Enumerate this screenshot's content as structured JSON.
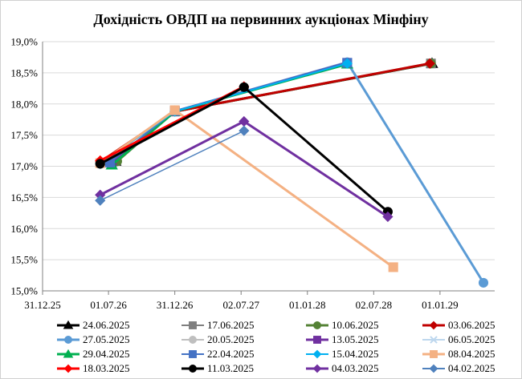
{
  "chart_data": {
    "type": "line",
    "title": "Дохідність ОВДП на первинних аукціонах Мінфіну",
    "xlabel": "",
    "ylabel": "",
    "x_ticks": [
      "31.12.25",
      "01.07.26",
      "31.12.26",
      "02.07.27",
      "01.01.28",
      "02.07.28",
      "01.01.29"
    ],
    "x_tick_dates": [
      "2025-12-31",
      "2026-07-01",
      "2026-12-31",
      "2027-07-02",
      "2028-01-01",
      "2028-07-02",
      "2029-01-01"
    ],
    "xlim": [
      "2025-12-31",
      "2029-06-01"
    ],
    "y_ticks": [
      "15,0%",
      "15,5%",
      "16,0%",
      "16,5%",
      "17,0%",
      "17,5%",
      "18,0%",
      "18,5%",
      "19,0%"
    ],
    "ylim": [
      15.0,
      19.0
    ],
    "grid": "horizontal",
    "legend_position": "bottom",
    "series": [
      {
        "name": "24.06.2025",
        "color": "#000000",
        "marker": "triangle",
        "width": 3,
        "points": [
          [
            "2026-07-20",
            17.08
          ],
          [
            "2026-12-31",
            17.88
          ],
          [
            "2028-12-10",
            18.65
          ]
        ]
      },
      {
        "name": "17.06.2025",
        "color": "#7f7f7f",
        "marker": "square",
        "width": 2,
        "points": [
          [
            "2026-07-05",
            17.07
          ],
          [
            "2026-12-31",
            17.88
          ],
          [
            "2028-12-07",
            18.65
          ]
        ]
      },
      {
        "name": "10.06.2025",
        "color": "#548235",
        "marker": "circle",
        "width": 3,
        "points": [
          [
            "2026-07-25",
            17.08
          ],
          [
            "2026-12-31",
            17.88
          ],
          [
            "2028-12-07",
            18.65
          ]
        ]
      },
      {
        "name": "03.06.2025",
        "color": "#c00000",
        "marker": "diamond",
        "width": 3,
        "points": [
          [
            "2026-06-08",
            17.07
          ],
          [
            "2026-12-31",
            17.88
          ],
          [
            "2028-12-04",
            18.65
          ]
        ]
      },
      {
        "name": "27.05.2025",
        "color": "#5b9bd5",
        "marker": "circle",
        "width": 3,
        "points": [
          [
            "2026-06-08",
            17.05
          ],
          [
            "2026-12-31",
            17.88
          ],
          [
            "2028-04-20",
            18.67
          ],
          [
            "2029-05-01",
            15.13
          ]
        ]
      },
      {
        "name": "20.05.2025",
        "color": "#bfbfbf",
        "marker": "circle",
        "width": 2,
        "points": [
          [
            "2026-06-08",
            17.05
          ],
          [
            "2026-12-31",
            17.88
          ],
          [
            "2028-04-20",
            18.66
          ]
        ]
      },
      {
        "name": "13.05.2025",
        "color": "#7030a0",
        "marker": "square",
        "width": 3,
        "points": [
          [
            "2026-07-10",
            17.05
          ],
          [
            "2026-12-31",
            17.88
          ],
          [
            "2028-04-20",
            18.66
          ]
        ]
      },
      {
        "name": "06.05.2025",
        "color": "#bdd7ee",
        "marker": "x",
        "width": 2,
        "points": [
          [
            "2026-06-10",
            17.05
          ],
          [
            "2026-12-31",
            17.88
          ],
          [
            "2028-04-20",
            18.65
          ]
        ]
      },
      {
        "name": "29.04.2025",
        "color": "#00b050",
        "marker": "triangle",
        "width": 3,
        "points": [
          [
            "2026-07-10",
            17.02
          ],
          [
            "2026-12-31",
            17.88
          ],
          [
            "2028-04-20",
            18.64
          ]
        ]
      },
      {
        "name": "22.04.2025",
        "color": "#4472c4",
        "marker": "square",
        "width": 2,
        "points": [
          [
            "2026-07-05",
            17.06
          ],
          [
            "2026-12-31",
            17.89
          ],
          [
            "2028-04-20",
            18.66
          ]
        ]
      },
      {
        "name": "15.04.2025",
        "color": "#00b0f0",
        "marker": "diamond",
        "width": 2,
        "points": [
          [
            "2026-06-08",
            17.04
          ],
          [
            "2026-12-31",
            17.88
          ],
          [
            "2028-04-20",
            18.65
          ]
        ]
      },
      {
        "name": "08.04.2025",
        "color": "#f4b183",
        "marker": "square",
        "width": 3,
        "points": [
          [
            "2026-06-08",
            17.05
          ],
          [
            "2026-12-31",
            17.9
          ],
          [
            "2028-08-25",
            15.38
          ]
        ]
      },
      {
        "name": "18.03.2025",
        "color": "#ff0000",
        "marker": "diamond",
        "width": 3,
        "points": [
          [
            "2026-06-08",
            17.09
          ],
          [
            "2027-07-10",
            18.28
          ]
        ]
      },
      {
        "name": "11.03.2025",
        "color": "#000000",
        "marker": "circle",
        "width": 3,
        "points": [
          [
            "2026-06-08",
            17.04
          ],
          [
            "2027-07-10",
            18.27
          ],
          [
            "2028-08-10",
            16.27
          ]
        ]
      },
      {
        "name": "04.03.2025",
        "color": "#7030a0",
        "marker": "diamond",
        "width": 3,
        "points": [
          [
            "2026-06-08",
            16.54
          ],
          [
            "2027-07-10",
            17.72
          ],
          [
            "2028-08-10",
            16.19
          ]
        ]
      },
      {
        "name": "04.02.2025",
        "color": "#4f81bd",
        "marker": "diamond",
        "width": 1.5,
        "points": [
          [
            "2026-06-08",
            16.45
          ],
          [
            "2027-07-10",
            17.57
          ]
        ]
      }
    ]
  }
}
